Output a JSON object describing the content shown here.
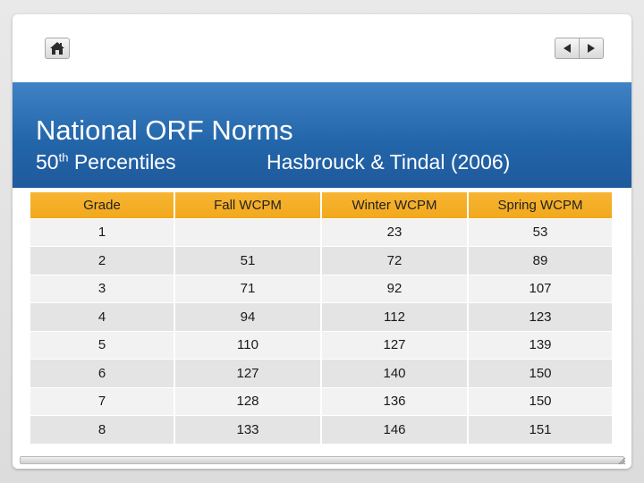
{
  "slide": {
    "title": "National ORF Norms",
    "subtitle_main": "50",
    "subtitle_sup": "th",
    "subtitle_rest": " Percentiles",
    "citation": "Hasbrouck & Tindal (2006)"
  },
  "nav": {
    "home_icon": "home-icon",
    "prev_icon": "triangle-left-icon",
    "next_icon": "triangle-right-icon"
  },
  "colors": {
    "header_blue": "#2264a8",
    "table_header_orange": "#f2a81c",
    "row_light": "#f2f2f2",
    "row_dark": "#e4e4e4"
  },
  "table": {
    "headers": [
      "Grade",
      "Fall WCPM",
      "Winter WCPM",
      "Spring WCPM"
    ],
    "rows": [
      [
        "1",
        "",
        "23",
        "53"
      ],
      [
        "2",
        "51",
        "72",
        "89"
      ],
      [
        "3",
        "71",
        "92",
        "107"
      ],
      [
        "4",
        "94",
        "112",
        "123"
      ],
      [
        "5",
        "110",
        "127",
        "139"
      ],
      [
        "6",
        "127",
        "140",
        "150"
      ],
      [
        "7",
        "128",
        "136",
        "150"
      ],
      [
        "8",
        "133",
        "146",
        "151"
      ]
    ]
  }
}
